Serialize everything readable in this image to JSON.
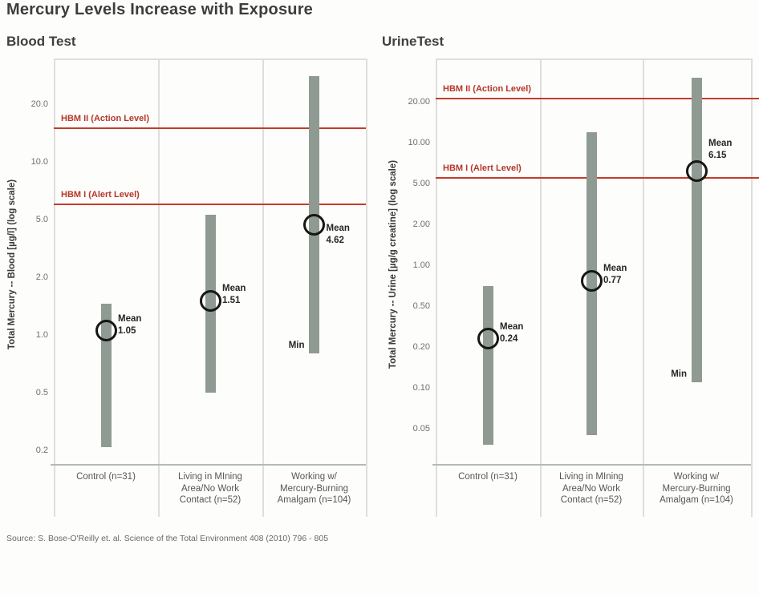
{
  "title": "Mercury Levels Increase with Exposure",
  "source": "Source: S. Bose-O'Reilly et. al. Science of the Total Environment 408 (2010) 796 - 805",
  "colors": {
    "bar": "#8e9a92",
    "reference_line": "#c23b2c",
    "reference_label": "#b5372a"
  },
  "chart_data": [
    {
      "type": "range-bar",
      "panel_title": "Blood Test",
      "ylabel": "Total Mercury -- Blood [µg/l] (log scale)",
      "yscale": "log",
      "ytick_values": [
        20,
        10,
        5,
        2,
        1,
        0.5,
        0.2
      ],
      "ytick_labels": [
        "20.0",
        "10.0",
        "5.0",
        "2.0",
        "1.0",
        "0.5",
        "0.2"
      ],
      "categories": [
        [
          "Control (n=31)"
        ],
        [
          "Living in MIning",
          "Area/No Work",
          "Contact (n=52)"
        ],
        [
          "Working w/",
          "Mercury-Burning",
          "Amalgam (n=104)"
        ]
      ],
      "series": [
        {
          "min": 0.21,
          "max": 1.45,
          "mean": 1.05,
          "mean_label": "1.05"
        },
        {
          "min": 0.5,
          "max": 5.3,
          "mean": 1.51,
          "mean_label": "1.51"
        },
        {
          "min": 0.8,
          "max": 28,
          "mean": 4.62,
          "mean_label": "4.62"
        }
      ],
      "mean_word": "Mean",
      "min_label": "Min",
      "min_series": 2,
      "reference_lines": [
        {
          "label": "HBM II (Action Level)",
          "value": 15
        },
        {
          "label": "HBM I (Alert Level)",
          "value": 6
        }
      ]
    },
    {
      "type": "range-bar",
      "panel_title": "UrineTest",
      "ylabel": "Total Mercury -- Urine [µg/g creatine] (log scale)",
      "yscale": "log",
      "ytick_values": [
        20,
        10,
        5,
        2,
        1,
        0.5,
        0.2,
        0.1,
        0.05
      ],
      "ytick_labels": [
        "20.00",
        "10.00",
        "5.00",
        "2.00",
        "1.00",
        "0.50",
        "0.20",
        "0.10",
        "0.05"
      ],
      "categories": [
        [
          "Control (n=31)"
        ],
        [
          "Living in MIning",
          "Area/No Work",
          "Contact (n=52)"
        ],
        [
          "Working w/",
          "Mercury-Burning",
          "Amalgam (n=104)"
        ]
      ],
      "series": [
        {
          "min": 0.038,
          "max": 0.7,
          "mean": 0.24,
          "mean_label": "0.24"
        },
        {
          "min": 0.045,
          "max": 12,
          "mean": 0.77,
          "mean_label": "0.77"
        },
        {
          "min": 0.11,
          "max": 30,
          "mean": 6.15,
          "mean_label": "6.15"
        }
      ],
      "mean_word": "Mean",
      "min_label": "Min",
      "min_series": 2,
      "reference_lines": [
        {
          "label": "HBM II (Action Level)",
          "value": 21
        },
        {
          "label": "HBM I (Alert Level)",
          "value": 5.5
        }
      ]
    }
  ]
}
